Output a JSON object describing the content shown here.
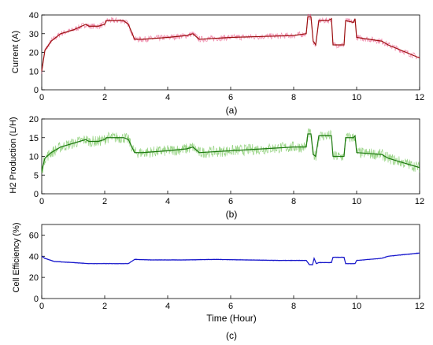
{
  "chart_data": [
    {
      "type": "line",
      "caption": "(a)",
      "xlabel": "",
      "ylabel": "Current (A)",
      "xlim": [
        0,
        12
      ],
      "ylim": [
        0,
        40
      ],
      "xticks": [
        "0",
        "2",
        "4",
        "6",
        "8",
        "10",
        "12"
      ],
      "yticks": [
        "0",
        "10",
        "20",
        "30",
        "40"
      ],
      "grid": false,
      "colors": {
        "line": "#9b1010",
        "noise": "#e5306c"
      },
      "series": [
        {
          "x": [
            0,
            0.1,
            0.3,
            0.6,
            1.0,
            1.4,
            1.5,
            1.8,
            2.0,
            2.05,
            2.6,
            2.75,
            2.95,
            3.2,
            4.0,
            4.6,
            4.8,
            5.0,
            6.0,
            7.0,
            8.0,
            8.4,
            8.45,
            8.55,
            8.62,
            8.7,
            8.8,
            9.1,
            9.2,
            9.25,
            9.6,
            9.65,
            9.9,
            9.95,
            10.0,
            10.8,
            11.0,
            12.0
          ],
          "y": [
            10,
            21,
            26,
            30,
            32,
            35,
            34,
            34,
            35,
            37,
            37,
            35,
            27,
            27,
            28,
            29,
            30,
            27,
            28,
            28.5,
            29,
            30,
            39,
            39,
            26,
            24,
            37,
            37,
            38,
            24,
            24,
            37,
            36,
            38,
            28,
            26,
            24,
            17
          ]
        }
      ]
    },
    {
      "type": "line",
      "caption": "(b)",
      "xlabel": "",
      "ylabel": "H2 Production (L/H)",
      "xlim": [
        0,
        12
      ],
      "ylim": [
        0,
        20
      ],
      "xticks": [
        "0",
        "2",
        "4",
        "6",
        "8",
        "10",
        "12"
      ],
      "yticks": [
        "0",
        "5",
        "10",
        "15",
        "20"
      ],
      "grid": false,
      "colors": {
        "line": "#1e7a10",
        "noise": "#44b020"
      },
      "series": [
        {
          "x": [
            0,
            0.1,
            0.3,
            0.6,
            1.0,
            1.4,
            1.5,
            1.8,
            2.0,
            2.05,
            2.6,
            2.75,
            2.95,
            3.2,
            4.0,
            4.6,
            4.8,
            5.0,
            6.0,
            7.0,
            8.0,
            8.4,
            8.45,
            8.55,
            8.62,
            8.7,
            8.8,
            9.1,
            9.2,
            9.25,
            9.6,
            9.65,
            9.9,
            9.95,
            10.0,
            10.8,
            11.0,
            12.0
          ],
          "y": [
            6,
            9.5,
            11,
            12.5,
            13.5,
            14.5,
            14,
            14,
            14.5,
            15,
            15,
            14.5,
            11,
            11,
            11.5,
            12,
            12.5,
            11,
            11.5,
            12,
            12.5,
            12.5,
            16,
            16,
            10.5,
            10,
            15.5,
            15.5,
            15.5,
            10,
            10,
            15,
            15,
            15.5,
            11,
            10.5,
            9.5,
            7
          ]
        }
      ]
    },
    {
      "type": "line",
      "caption": "(c)",
      "xlabel": "Time (Hour)",
      "ylabel": "Cell Efficiency (%)",
      "xlim": [
        0,
        12
      ],
      "ylim": [
        0,
        70
      ],
      "xticks": [
        "0",
        "2",
        "4",
        "6",
        "8",
        "10",
        "12"
      ],
      "yticks": [
        "0",
        "20",
        "40",
        "60"
      ],
      "grid": false,
      "colors": {
        "line": "#1515c8",
        "noise": "#3a3aff"
      },
      "series": [
        {
          "x": [
            0,
            0.1,
            0.4,
            1.0,
            1.5,
            2.0,
            2.5,
            2.75,
            2.95,
            3.5,
            4.5,
            5.5,
            6.5,
            7.5,
            8.4,
            8.5,
            8.6,
            8.65,
            8.72,
            8.8,
            9.2,
            9.25,
            9.6,
            9.65,
            9.95,
            10.0,
            10.8,
            11.0,
            12.0
          ],
          "y": [
            40,
            38,
            35,
            34,
            33,
            33,
            33,
            33,
            37,
            36.5,
            36.5,
            37,
            36.5,
            36,
            36,
            32,
            32,
            38,
            33,
            34,
            34,
            39,
            39,
            33,
            33,
            36,
            38,
            40,
            43
          ]
        }
      ]
    }
  ]
}
